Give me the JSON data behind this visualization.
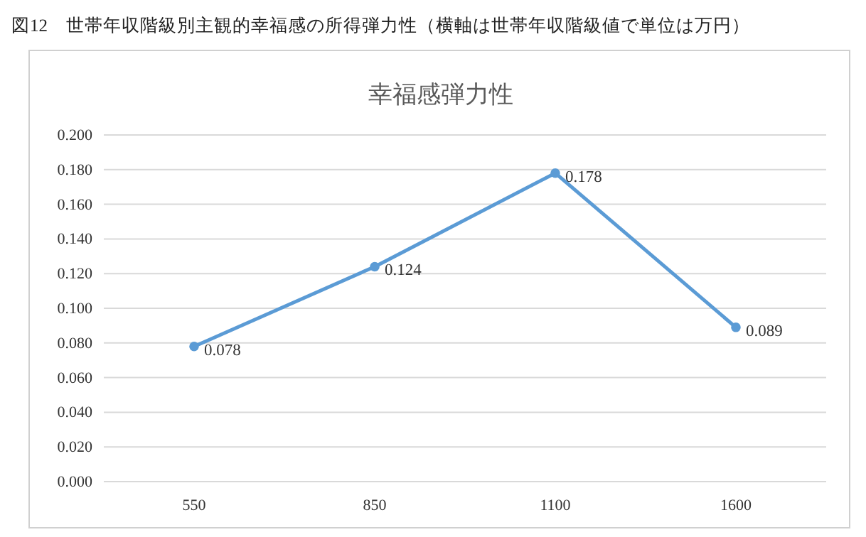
{
  "chart_data": {
    "type": "line",
    "title": "幸福感弾力性",
    "annotations": [
      "図12　世帯年収階級別主観的幸福感の所得弾力性（横軸は世帯年収階級値で単位は万円）"
    ],
    "categories": [
      "550",
      "850",
      "1100",
      "1600"
    ],
    "series": [
      {
        "color": "#5b9bd5",
        "values": [
          0.078,
          0.124,
          0.178,
          0.089
        ]
      }
    ],
    "ylim": [
      0,
      0.2
    ],
    "yticks": [
      {
        "value": 0,
        "label": "0.000"
      },
      {
        "value": 0.02,
        "label": "0.020"
      },
      {
        "value": 0.04,
        "label": "0.040"
      },
      {
        "value": 0.06,
        "label": "0.060"
      },
      {
        "value": 0.08,
        "label": "0.080"
      },
      {
        "value": 0.1,
        "label": "0.100"
      },
      {
        "value": 0.12,
        "label": "0.120"
      },
      {
        "value": 0.14,
        "label": "0.140"
      },
      {
        "value": 0.16,
        "label": "0.160"
      },
      {
        "value": 0.18,
        "label": "0.180"
      },
      {
        "value": 0.2,
        "label": "0.200"
      }
    ],
    "grid": "y",
    "marker": "circle",
    "line_style": "solid",
    "data_labels": true
  }
}
